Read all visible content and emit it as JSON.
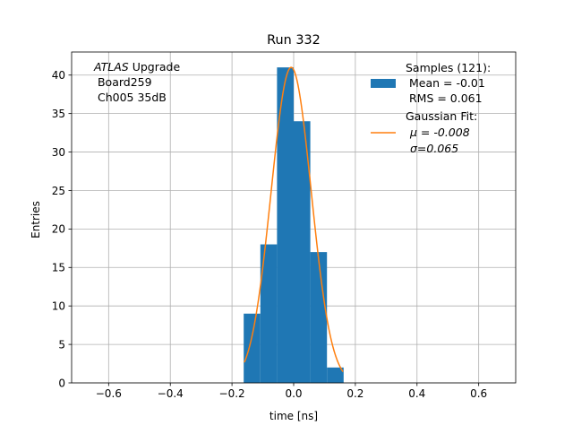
{
  "chart_data": {
    "type": "bar",
    "title": "Run 332",
    "xlabel": "time [ns]",
    "ylabel": "Entries",
    "xlim": [
      -0.72,
      0.72
    ],
    "ylim": [
      0,
      43
    ],
    "xticks": [
      -0.6,
      -0.4,
      -0.2,
      0.0,
      0.2,
      0.4,
      0.6
    ],
    "xtick_labels": [
      "−0.6",
      "−0.4",
      "−0.2",
      "0.0",
      "0.2",
      "0.4",
      "0.6"
    ],
    "yticks": [
      0,
      5,
      10,
      15,
      20,
      25,
      30,
      35,
      40
    ],
    "grid": true,
    "legend_position": "top-right",
    "annotation": {
      "line1_italic": "ATLAS",
      "line1_rest": " Upgrade",
      "line2": " Board259",
      "line3": " Ch005 35dB"
    },
    "histogram": {
      "name": "Samples (121):",
      "stats": [
        " Mean = -0.01",
        " RMS = 0.061"
      ],
      "color": "#1f77b4",
      "bin_edges": [
        -0.162,
        -0.108,
        -0.054,
        0.0,
        0.054,
        0.108,
        0.162
      ],
      "counts": [
        9,
        18,
        41,
        34,
        17,
        2
      ]
    },
    "fit": {
      "name": "Gaussian Fit:",
      "mu_label": "μ = -0.008",
      "sigma_label": "σ=0.065",
      "color": "#ff7f0e",
      "amplitude": 41,
      "mu": -0.008,
      "sigma": 0.065,
      "x_range": [
        -0.16,
        0.16
      ]
    }
  }
}
